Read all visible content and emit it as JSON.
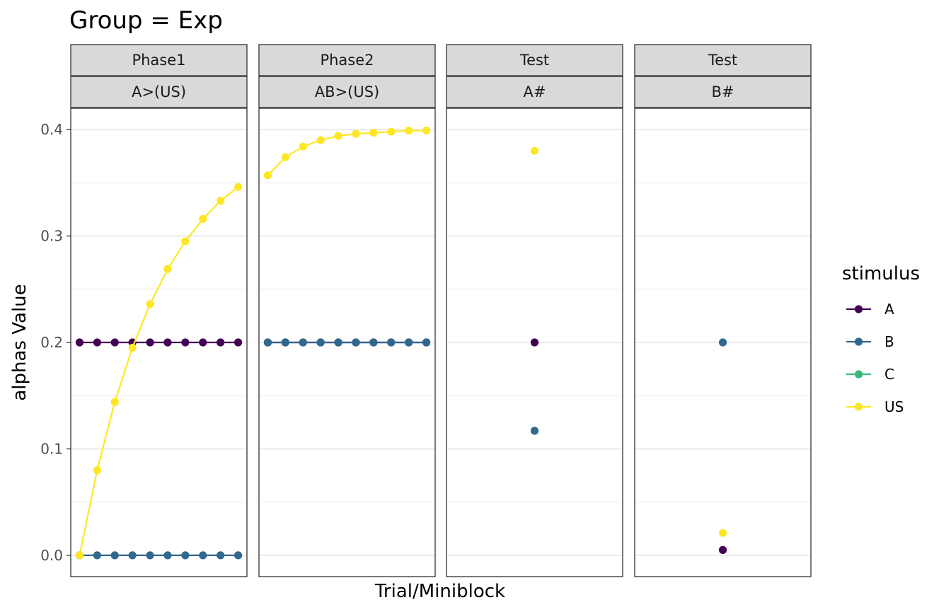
{
  "chart_data": {
    "type": "line",
    "title": "Group = Exp",
    "xlabel": "Trial/Miniblock",
    "ylabel": "alphas Value",
    "ylim": [
      -0.02,
      0.42
    ],
    "yticks": [
      0.0,
      0.1,
      0.2,
      0.3,
      0.4
    ],
    "ytick_labels": [
      "0.0",
      "0.1",
      "0.2",
      "0.3",
      "0.4"
    ],
    "grid": true,
    "legend": {
      "title": "stimulus",
      "position": "right",
      "entries": [
        {
          "name": "A",
          "color": "#440154"
        },
        {
          "name": "B",
          "color": "#31688e"
        },
        {
          "name": "C",
          "color": "#35b779"
        },
        {
          "name": "US",
          "color": "#fde725"
        }
      ]
    },
    "panels": [
      {
        "strip_top": "Phase1",
        "strip_bottom": "A>(US)",
        "x": [
          1,
          2,
          3,
          4,
          5,
          6,
          7,
          8,
          9,
          10
        ],
        "xlim": [
          0.5,
          10.5
        ],
        "series": [
          {
            "name": "A",
            "values": [
              0.2,
              0.2,
              0.2,
              0.2,
              0.2,
              0.2,
              0.2,
              0.2,
              0.2,
              0.2
            ]
          },
          {
            "name": "B",
            "values": [
              0.0,
              0.0,
              0.0,
              0.0,
              0.0,
              0.0,
              0.0,
              0.0,
              0.0,
              0.0
            ]
          },
          {
            "name": "US",
            "values": [
              0.0,
              0.08,
              0.144,
              0.195,
              0.236,
              0.269,
              0.295,
              0.316,
              0.333,
              0.346
            ]
          }
        ]
      },
      {
        "strip_top": "Phase2",
        "strip_bottom": "AB>(US)",
        "x": [
          1,
          2,
          3,
          4,
          5,
          6,
          7,
          8,
          9,
          10
        ],
        "xlim": [
          0.5,
          10.5
        ],
        "series": [
          {
            "name": "A",
            "values": [
              0.2,
              0.2,
              0.2,
              0.2,
              0.2,
              0.2,
              0.2,
              0.2,
              0.2,
              0.2
            ]
          },
          {
            "name": "B",
            "values": [
              0.2,
              0.2,
              0.2,
              0.2,
              0.2,
              0.2,
              0.2,
              0.2,
              0.2,
              0.2
            ]
          },
          {
            "name": "US",
            "values": [
              0.357,
              0.374,
              0.384,
              0.39,
              0.394,
              0.396,
              0.397,
              0.398,
              0.399,
              0.399
            ]
          }
        ]
      },
      {
        "strip_top": "Test",
        "strip_bottom": "A#",
        "x": [
          1
        ],
        "xlim": [
          0.5,
          1.5
        ],
        "series": [
          {
            "name": "A",
            "values": [
              0.2
            ]
          },
          {
            "name": "B",
            "values": [
              0.117
            ]
          },
          {
            "name": "US",
            "values": [
              0.38
            ]
          }
        ]
      },
      {
        "strip_top": "Test",
        "strip_bottom": "B#",
        "x": [
          1
        ],
        "xlim": [
          0.5,
          1.5
        ],
        "series": [
          {
            "name": "A",
            "values": [
              0.005
            ]
          },
          {
            "name": "B",
            "values": [
              0.2
            ]
          },
          {
            "name": "US",
            "values": [
              0.021
            ]
          }
        ]
      }
    ]
  }
}
